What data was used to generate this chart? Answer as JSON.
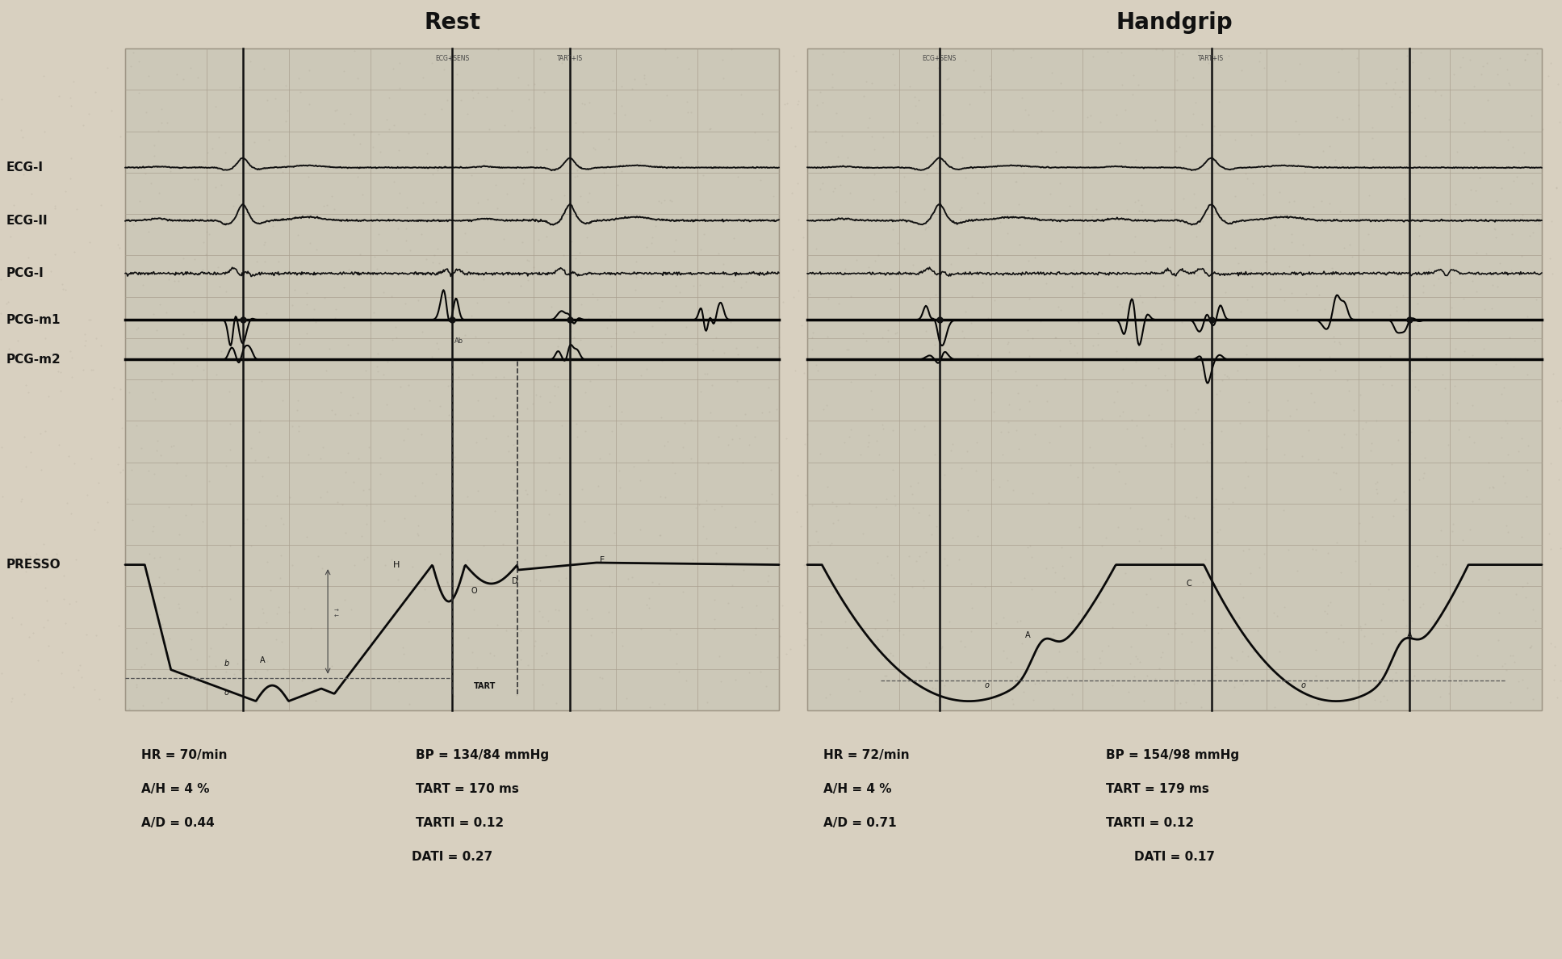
{
  "title_left": "Rest",
  "title_right": "Handgrip",
  "title_fontsize": 20,
  "title_fontweight": "bold",
  "bg_color": "#d8d0c0",
  "chart_bg": "#ccc8b8",
  "channel_labels": [
    "ECG-I",
    "ECG-II",
    "PCG-I",
    "PCG-m1",
    "PCG-m2"
  ],
  "presso_label": "PRESSO",
  "left_stats": [
    "HR = 70/min",
    "A/H = 4 %",
    "A/D = 0.44",
    "DATI = 0.27"
  ],
  "left_stats2": [
    "BP = 134/84 mmHg",
    "TART = 170 ms",
    "TARTI = 0.12"
  ],
  "right_stats": [
    "HR = 72/min",
    "A/H = 4 %",
    "A/D = 0.71",
    "DATI = 0.17"
  ],
  "right_stats2": [
    "BP = 154/98 mmHg",
    "TART = 179 ms",
    "TARTI = 0.12"
  ],
  "grid_color": "#aaa090",
  "line_color": "#1a1a1a",
  "strong_line_color": "#000000"
}
